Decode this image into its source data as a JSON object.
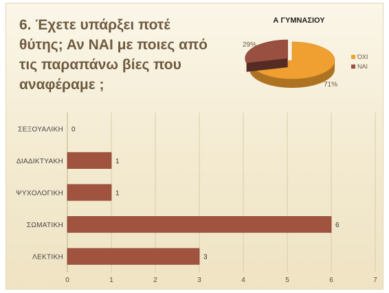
{
  "slide": {
    "question": "6. Έχετε υπάρξει ποτέ\nθύτης; Αν ΝΑΙ με ποιες από\nτις παραπάνω βίες που\nαναφέραμε ;"
  },
  "colors": {
    "bar": "#a0543f",
    "pie_oxi": "#f0a030",
    "pie_nai": "#9a5040",
    "grid": "#d9ccaa"
  },
  "chart_data": [
    {
      "type": "pie",
      "title": "Α ΓΥΜΝΑΣΙΟΥ",
      "categories": [
        "ΌΧΙ",
        "ΝΑΙ"
      ],
      "values": [
        71,
        29
      ],
      "labels": [
        "71%",
        "29%"
      ],
      "legend": "right"
    },
    {
      "type": "bar",
      "orientation": "horizontal",
      "categories": [
        "ΣΕΞΟΥΑΛΙΚΗ",
        "ΔΙΑΔΙΚΤΥΑΚΗ",
        "ΨΥΧΟΛΟΓΙΚΗ",
        "ΣΩΜΑΤΙΚΗ",
        "ΛΕΚΤΙΚΗ"
      ],
      "values": [
        0,
        1,
        1,
        6,
        3
      ],
      "xlim": [
        0,
        7
      ],
      "xticks": [
        0,
        1,
        2,
        3,
        4,
        5,
        6,
        7
      ],
      "grid": true
    }
  ]
}
